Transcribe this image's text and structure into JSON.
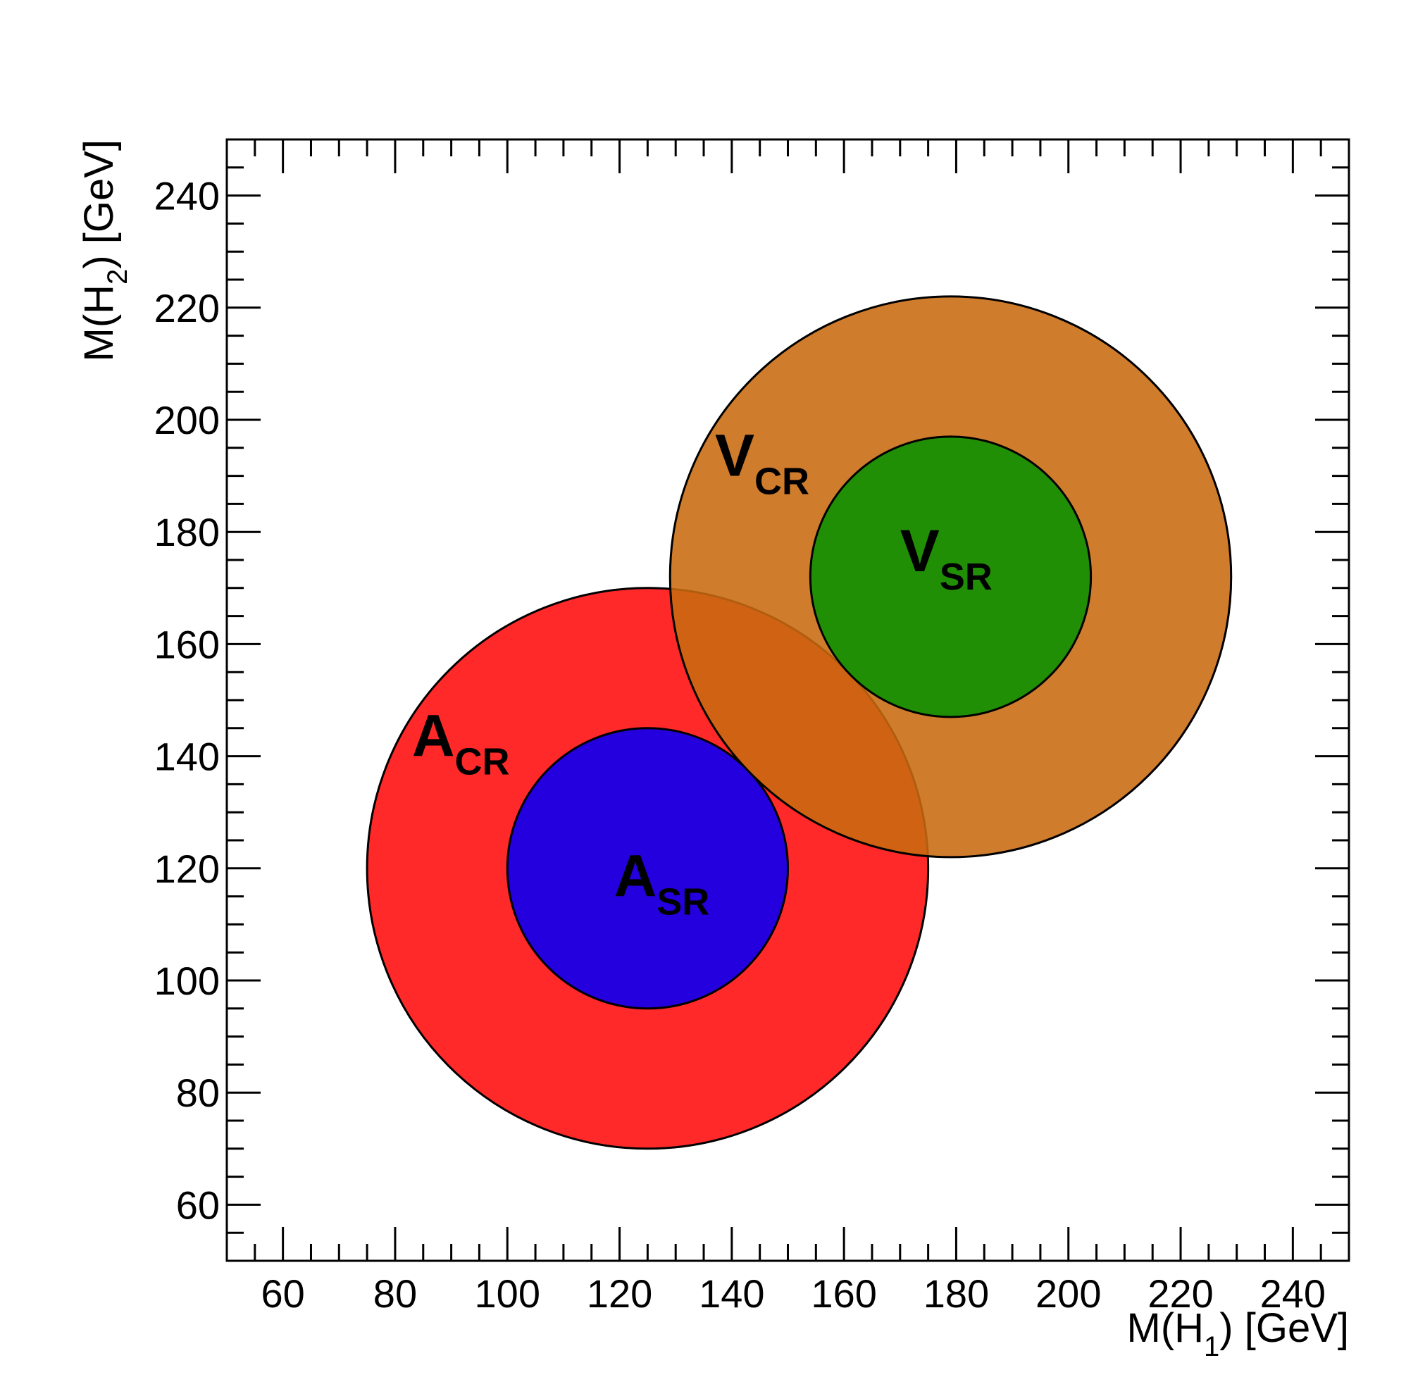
{
  "chart_data": {
    "type": "region-diagram",
    "x_axis": {
      "label_main": "M(H",
      "label_sub": "1",
      "label_tail": ") [GeV]",
      "range": [
        50,
        250
      ],
      "ticks": [
        60,
        80,
        100,
        120,
        140,
        160,
        180,
        200,
        220,
        240
      ],
      "tick_labels": [
        "60",
        "80",
        "100",
        "120",
        "140",
        "160",
        "180",
        "200",
        "220",
        "240"
      ]
    },
    "y_axis": {
      "label_main": "M(H",
      "label_sub": "2",
      "label_tail": ") [GeV]",
      "range": [
        50,
        250
      ],
      "ticks": [
        60,
        80,
        100,
        120,
        140,
        160,
        180,
        200,
        220,
        240
      ],
      "tick_labels": [
        "60",
        "80",
        "100",
        "120",
        "140",
        "160",
        "180",
        "200",
        "220",
        "240"
      ]
    },
    "grid": false,
    "regions": [
      {
        "id": "a-cr",
        "center": [
          125,
          120
        ],
        "radius": 50,
        "color": "#ff2929",
        "opacity": 1.0
      },
      {
        "id": "a-sr",
        "center": [
          125,
          120
        ],
        "radius": 25,
        "color": "#2300dd",
        "opacity": 1.0
      },
      {
        "id": "v-cr",
        "center": [
          179,
          172
        ],
        "radius": 50,
        "color": "#c96a10",
        "opacity": 0.88
      },
      {
        "id": "v-sr",
        "center": [
          179,
          172
        ],
        "radius": 25,
        "color": "#218f06",
        "opacity": 1.0
      }
    ],
    "labels": [
      {
        "id": "a-cr-label",
        "main": "A",
        "sub": "CR",
        "position": [
          83,
          140
        ]
      },
      {
        "id": "a-sr-label",
        "main": "A",
        "sub": "SR",
        "position": [
          119,
          115
        ]
      },
      {
        "id": "v-cr-label",
        "main": "V",
        "sub": "CR",
        "position": [
          137,
          190
        ]
      },
      {
        "id": "v-sr-label",
        "main": "V",
        "sub": "SR",
        "position": [
          170,
          173
        ]
      }
    ]
  }
}
